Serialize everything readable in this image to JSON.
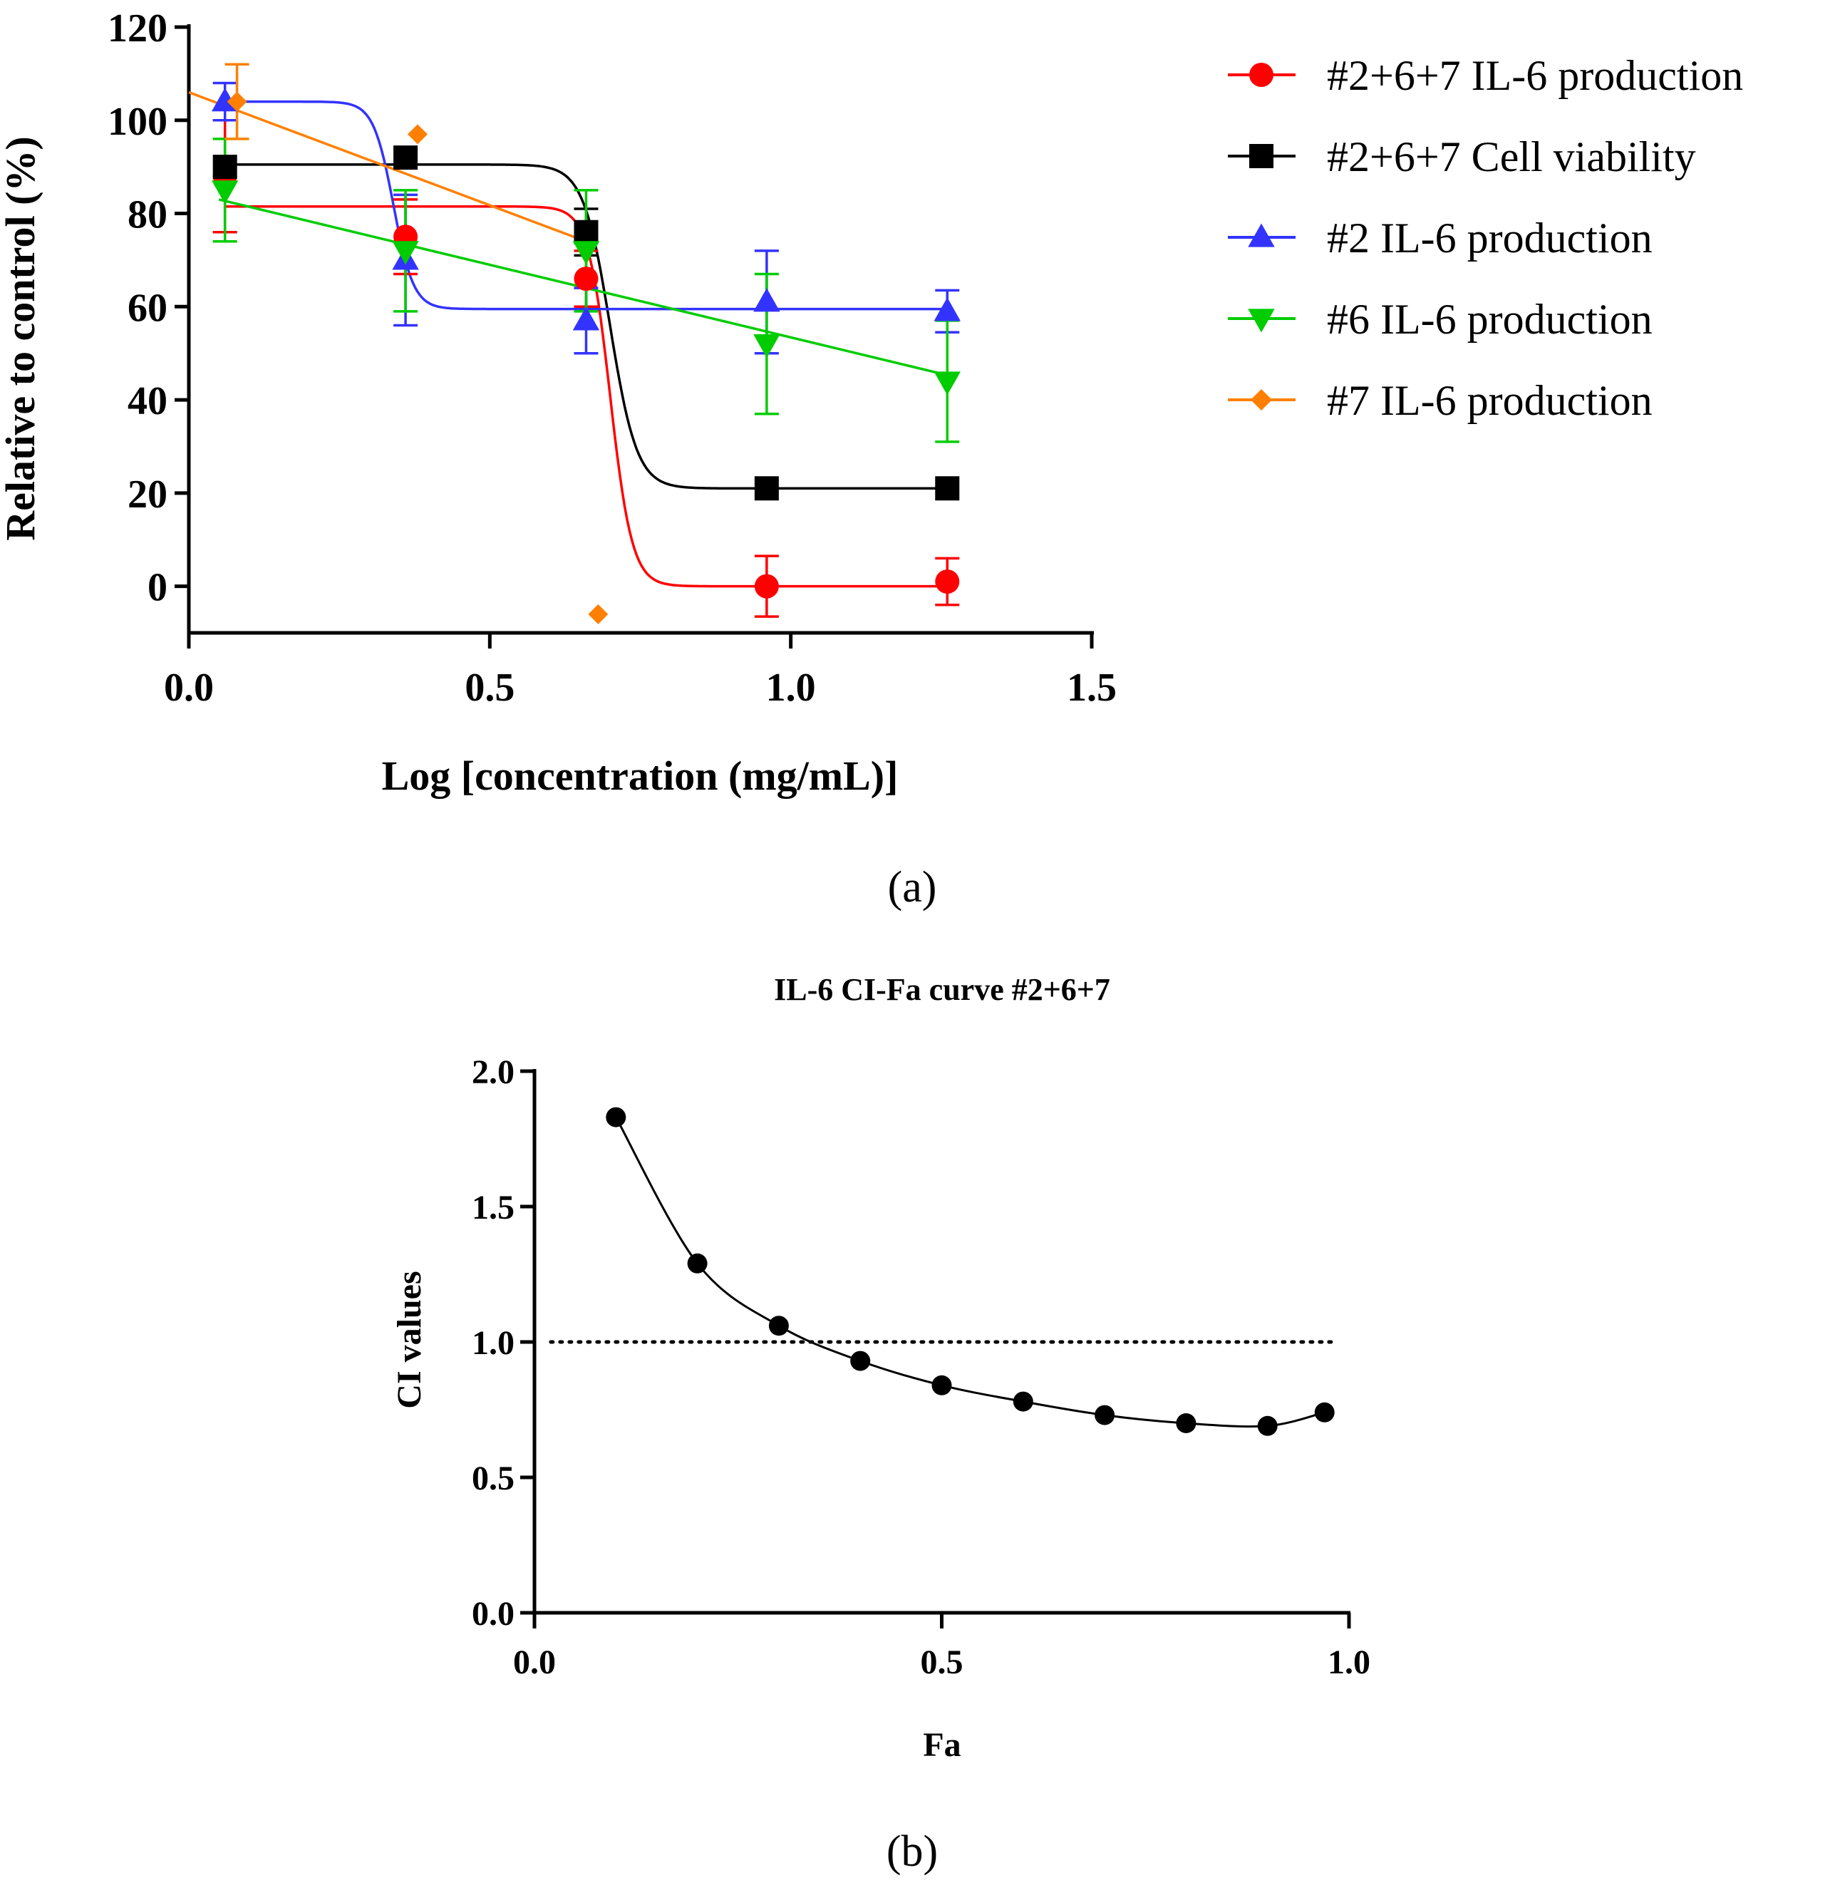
{
  "chart_data": [
    {
      "type": "scatter",
      "panel_label": "(a)",
      "title": "",
      "xlabel": "Log [concentration (mg/mL)]",
      "ylabel": "Relative to control (%)",
      "xlim": [
        0.0,
        1.5
      ],
      "ylim": [
        -10,
        120
      ],
      "xticks": [
        "0.0",
        "0.5",
        "1.0",
        "1.5"
      ],
      "xtick_values": [
        0.0,
        0.5,
        1.0,
        1.5
      ],
      "yticks": [
        "0",
        "20",
        "40",
        "60",
        "80",
        "100",
        "120"
      ],
      "ytick_values": [
        0,
        20,
        40,
        60,
        80,
        100,
        120
      ],
      "legend_position": "right",
      "series": [
        {
          "name": "#2+6+7 IL-6 production",
          "color": "#ff0000",
          "marker": "circle",
          "x": [
            0.06,
            0.36,
            0.66,
            0.96,
            1.26
          ],
          "y": [
            88,
            75,
            66,
            0,
            1
          ],
          "err": [
            12,
            8,
            6,
            6.5,
            5
          ],
          "fit": {
            "model": "sigmoid",
            "top": 81.5,
            "bottom": 0,
            "x50": 0.7,
            "slope": 55
          }
        },
        {
          "name": "#2+6+7 Cell viability",
          "color": "#000000",
          "marker": "square",
          "x": [
            0.06,
            0.36,
            0.66,
            0.96,
            1.26
          ],
          "y": [
            90,
            92,
            76,
            21,
            21
          ],
          "err": [
            0,
            0,
            5,
            0,
            0
          ],
          "fit": {
            "model": "sigmoid",
            "top": 90.5,
            "bottom": 21,
            "x50": 0.7,
            "slope": 45
          }
        },
        {
          "name": "#2 IL-6 production",
          "color": "#3333ff",
          "marker": "triangle-up",
          "x": [
            0.06,
            0.36,
            0.66,
            0.96,
            1.26
          ],
          "y": [
            104,
            70,
            57,
            61,
            59
          ],
          "err": [
            4,
            14,
            7,
            11,
            4.5
          ],
          "fit": {
            "model": "sigmoid",
            "top": 104,
            "bottom": 59.5,
            "x50": 0.34,
            "slope": 60
          }
        },
        {
          "name": "#6 IL-6 production",
          "color": "#00cc00",
          "marker": "triangle-down",
          "x": [
            0.06,
            0.36,
            0.66,
            0.96,
            1.26
          ],
          "y": [
            85,
            72,
            72,
            52,
            44
          ],
          "err": [
            11,
            13,
            13,
            15,
            13
          ],
          "fit": {
            "model": "linear",
            "x0": 0.05,
            "y0": 83,
            "x1": 1.27,
            "y1": 45
          }
        },
        {
          "name": "#7 IL-6 production",
          "color": "#ff8000",
          "marker": "diamond",
          "x": [
            0.08,
            0.38,
            0.68
          ],
          "y": [
            104,
            97,
            -6
          ],
          "err": [
            8,
            0,
            0
          ],
          "fit": {
            "model": "linear",
            "x0": 0.0,
            "y0": 106,
            "x1": 0.66,
            "y1": 74
          }
        }
      ]
    },
    {
      "type": "line",
      "panel_label": "(b)",
      "title": "IL-6 CI-Fa curve #2+6+7",
      "xlabel": "Fa",
      "ylabel": "CI values",
      "xlim": [
        0.0,
        1.0
      ],
      "ylim": [
        0.0,
        2.0
      ],
      "xticks": [
        "0.0",
        "0.5",
        "1.0"
      ],
      "xtick_values": [
        0.0,
        0.5,
        1.0
      ],
      "yticks": [
        "0.0",
        "0.5",
        "1.0",
        "1.5",
        "2.0"
      ],
      "ytick_values": [
        0.0,
        0.5,
        1.0,
        1.5,
        2.0
      ],
      "reference_line": 1.0,
      "series": [
        {
          "name": "CI",
          "color": "#000000",
          "marker": "circle",
          "x": [
            0.1,
            0.2,
            0.3,
            0.4,
            0.5,
            0.6,
            0.7,
            0.8,
            0.9,
            0.97
          ],
          "y": [
            1.83,
            1.29,
            1.06,
            0.93,
            0.84,
            0.78,
            0.73,
            0.7,
            0.69,
            0.74
          ]
        }
      ]
    }
  ]
}
